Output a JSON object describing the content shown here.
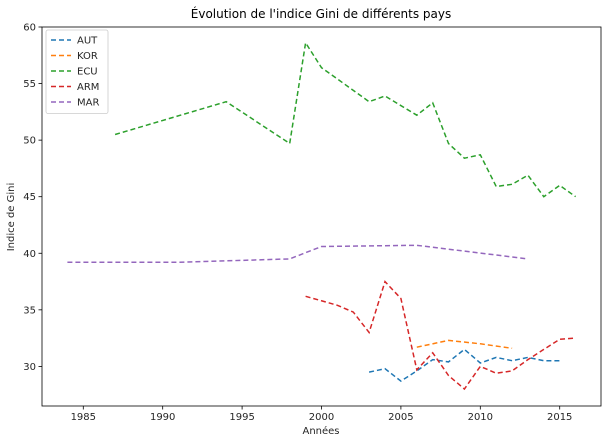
{
  "chart_data": {
    "type": "line",
    "title": "Évolution de l'indice Gini de différents pays",
    "xlabel": "Années",
    "ylabel": "Indice de Gini",
    "xlim": [
      1982.4,
      2017.6
    ],
    "ylim": [
      26.5,
      60
    ],
    "xticks": [
      1985,
      1990,
      1995,
      2000,
      2005,
      2010,
      2015
    ],
    "yticks": [
      30,
      35,
      40,
      45,
      50,
      55,
      60
    ],
    "grid": false,
    "legend_position": "top-left",
    "line_style": "dashed",
    "series": [
      {
        "name": "AUT",
        "color": "#1f77b4",
        "x": [
          2003,
          2004,
          2005,
          2006,
          2007,
          2008,
          2009,
          2010,
          2011,
          2012,
          2013,
          2014,
          2015
        ],
        "y": [
          29.5,
          29.8,
          28.7,
          29.6,
          30.6,
          30.4,
          31.5,
          30.3,
          30.8,
          30.5,
          30.8,
          30.5,
          30.5
        ]
      },
      {
        "name": "KOR",
        "color": "#ff7f0e",
        "x": [
          2006,
          2008,
          2010,
          2012
        ],
        "y": [
          31.7,
          32.3,
          32.0,
          31.6
        ]
      },
      {
        "name": "ECU",
        "color": "#2ca02c",
        "x": [
          1987,
          1994,
          1998,
          1999,
          2000,
          2001,
          2003,
          2004,
          2006,
          2007,
          2008,
          2009,
          2010,
          2011,
          2012,
          2013,
          2014,
          2015,
          2016
        ],
        "y": [
          50.5,
          53.4,
          49.7,
          58.6,
          56.4,
          55.4,
          53.4,
          53.9,
          52.2,
          53.3,
          49.7,
          48.4,
          48.7,
          45.9,
          46.1,
          46.9,
          45.0,
          46.0,
          45.0
        ]
      },
      {
        "name": "ARM",
        "color": "#d62728",
        "x": [
          1999,
          2001,
          2002,
          2003,
          2004,
          2005,
          2006,
          2007,
          2008,
          2009,
          2010,
          2011,
          2012,
          2013,
          2014,
          2015,
          2016
        ],
        "y": [
          36.2,
          35.4,
          34.8,
          33.0,
          37.5,
          36.0,
          29.7,
          31.2,
          29.2,
          28.0,
          30.0,
          29.4,
          29.6,
          30.6,
          31.5,
          32.4,
          32.5
        ]
      },
      {
        "name": "MAR",
        "color": "#9467bd",
        "x": [
          1984,
          1991,
          1998,
          2000,
          2006,
          2013
        ],
        "y": [
          39.2,
          39.2,
          39.5,
          40.6,
          40.7,
          39.5
        ]
      }
    ]
  }
}
